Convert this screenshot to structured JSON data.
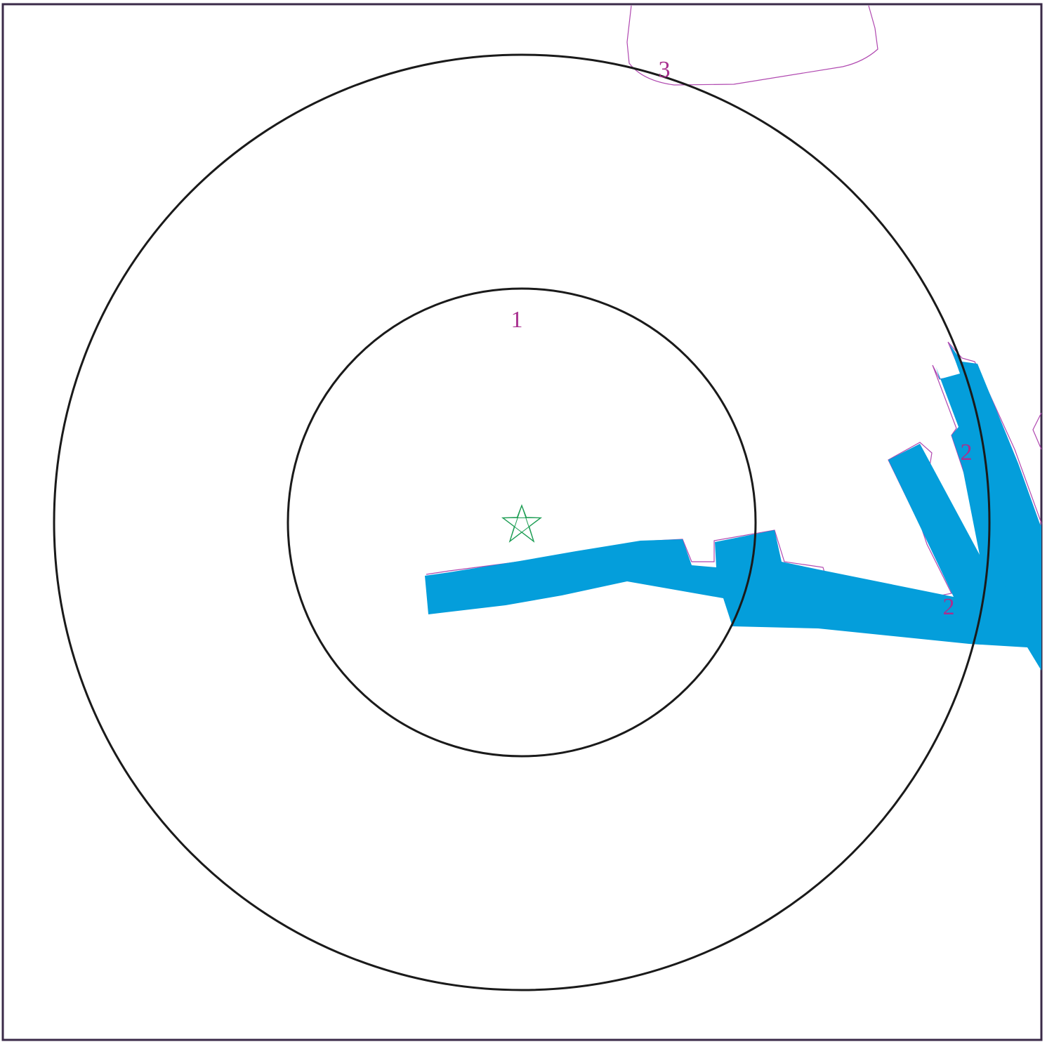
{
  "map": {
    "colors": {
      "frame": "#3a2a48",
      "ring": "#1a1a1a",
      "water": "#049edb",
      "outline": "#b048b0",
      "label": "#a8308f",
      "marker": "#1f9e55"
    },
    "labels": {
      "inner_ring": "1",
      "channel_end": "2",
      "side_basin": "2",
      "top_area": "3"
    },
    "marker_icon": "star-icon"
  }
}
